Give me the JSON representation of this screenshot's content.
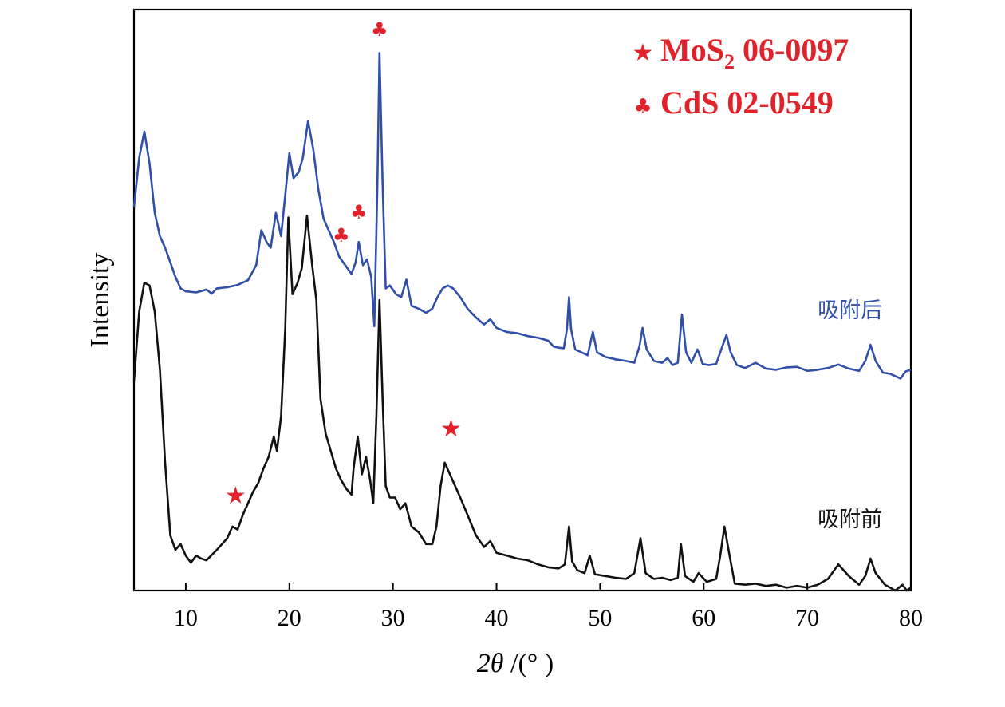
{
  "chart_data": {
    "type": "line",
    "xlabel_prefix": "2θ",
    "xlabel_suffix": " /(°  )",
    "ylabel": "Intensity",
    "xlim": [
      5,
      80
    ],
    "x_ticks": [
      10,
      20,
      30,
      40,
      50,
      60,
      70,
      80
    ],
    "y_ticks_shown": false,
    "legend_position": "top-right",
    "legend": [
      {
        "marker": "★",
        "text": "MoS",
        "sub": "2",
        "suffix": " 06-0097",
        "color": "#e0232b"
      },
      {
        "marker": "♣",
        "text": "CdS 02-0549",
        "sub": "",
        "suffix": "",
        "color": "#e0232b"
      }
    ],
    "series": [
      {
        "name": "吸附后",
        "color": "#2f4fa8",
        "points": [
          [
            5.0,
            0.66
          ],
          [
            5.5,
            0.745
          ],
          [
            6.0,
            0.79
          ],
          [
            6.5,
            0.735
          ],
          [
            7.0,
            0.65
          ],
          [
            7.5,
            0.61
          ],
          [
            8.0,
            0.59
          ],
          [
            8.5,
            0.565
          ],
          [
            9.0,
            0.54
          ],
          [
            9.5,
            0.52
          ],
          [
            10.0,
            0.515
          ],
          [
            11.0,
            0.513
          ],
          [
            12.0,
            0.518
          ],
          [
            12.5,
            0.511
          ],
          [
            13.0,
            0.52
          ],
          [
            14.0,
            0.522
          ],
          [
            15.0,
            0.526
          ],
          [
            16.0,
            0.534
          ],
          [
            16.8,
            0.56
          ],
          [
            17.3,
            0.62
          ],
          [
            17.8,
            0.6
          ],
          [
            18.2,
            0.59
          ],
          [
            18.7,
            0.65
          ],
          [
            19.2,
            0.61
          ],
          [
            19.6,
            0.68
          ],
          [
            20.0,
            0.753
          ],
          [
            20.4,
            0.71
          ],
          [
            20.9,
            0.72
          ],
          [
            21.3,
            0.745
          ],
          [
            21.8,
            0.808
          ],
          [
            22.3,
            0.76
          ],
          [
            22.8,
            0.69
          ],
          [
            23.3,
            0.64
          ],
          [
            23.8,
            0.62
          ],
          [
            24.3,
            0.6
          ],
          [
            24.8,
            0.575
          ],
          [
            25.2,
            0.565
          ],
          [
            25.6,
            0.555
          ],
          [
            26.0,
            0.545
          ],
          [
            26.4,
            0.565
          ],
          [
            26.7,
            0.6
          ],
          [
            27.1,
            0.56
          ],
          [
            27.5,
            0.57
          ],
          [
            27.9,
            0.54
          ],
          [
            28.2,
            0.455
          ],
          [
            28.5,
            0.7
          ],
          [
            28.7,
            0.925
          ],
          [
            29.0,
            0.7
          ],
          [
            29.3,
            0.52
          ],
          [
            29.7,
            0.525
          ],
          [
            30.3,
            0.51
          ],
          [
            30.8,
            0.505
          ],
          [
            31.3,
            0.535
          ],
          [
            31.8,
            0.49
          ],
          [
            32.5,
            0.485
          ],
          [
            33.2,
            0.478
          ],
          [
            33.8,
            0.485
          ],
          [
            34.3,
            0.505
          ],
          [
            34.8,
            0.52
          ],
          [
            35.3,
            0.525
          ],
          [
            35.8,
            0.52
          ],
          [
            36.5,
            0.505
          ],
          [
            37.2,
            0.485
          ],
          [
            38.0,
            0.47
          ],
          [
            38.8,
            0.458
          ],
          [
            39.4,
            0.467
          ],
          [
            40.0,
            0.452
          ],
          [
            41.0,
            0.445
          ],
          [
            42.0,
            0.443
          ],
          [
            43.0,
            0.438
          ],
          [
            44.0,
            0.435
          ],
          [
            45.0,
            0.43
          ],
          [
            45.5,
            0.42
          ],
          [
            46.0,
            0.418
          ],
          [
            46.5,
            0.417
          ],
          [
            46.8,
            0.45
          ],
          [
            47.0,
            0.505
          ],
          [
            47.2,
            0.45
          ],
          [
            47.6,
            0.415
          ],
          [
            48.2,
            0.41
          ],
          [
            48.8,
            0.405
          ],
          [
            49.3,
            0.445
          ],
          [
            49.7,
            0.41
          ],
          [
            50.5,
            0.402
          ],
          [
            51.5,
            0.398
          ],
          [
            52.5,
            0.395
          ],
          [
            53.3,
            0.392
          ],
          [
            53.8,
            0.42
          ],
          [
            54.1,
            0.452
          ],
          [
            54.5,
            0.415
          ],
          [
            55.2,
            0.395
          ],
          [
            56.0,
            0.392
          ],
          [
            56.5,
            0.4
          ],
          [
            57.0,
            0.388
          ],
          [
            57.5,
            0.392
          ],
          [
            57.9,
            0.475
          ],
          [
            58.3,
            0.41
          ],
          [
            58.8,
            0.392
          ],
          [
            59.4,
            0.415
          ],
          [
            59.9,
            0.39
          ],
          [
            60.5,
            0.388
          ],
          [
            61.2,
            0.39
          ],
          [
            61.8,
            0.42
          ],
          [
            62.2,
            0.44
          ],
          [
            62.6,
            0.41
          ],
          [
            63.2,
            0.388
          ],
          [
            64.0,
            0.383
          ],
          [
            65.0,
            0.392
          ],
          [
            66.0,
            0.382
          ],
          [
            67.0,
            0.38
          ],
          [
            68.0,
            0.384
          ],
          [
            69.0,
            0.385
          ],
          [
            70.0,
            0.378
          ],
          [
            71.0,
            0.38
          ],
          [
            72.0,
            0.383
          ],
          [
            73.0,
            0.389
          ],
          [
            74.0,
            0.382
          ],
          [
            75.0,
            0.378
          ],
          [
            75.6,
            0.395
          ],
          [
            76.1,
            0.423
          ],
          [
            76.6,
            0.395
          ],
          [
            77.3,
            0.375
          ],
          [
            78.0,
            0.373
          ],
          [
            79.0,
            0.365
          ],
          [
            79.5,
            0.377
          ],
          [
            80.0,
            0.38
          ]
        ],
        "markers": [
          {
            "x": 25.0,
            "y": 0.6,
            "symbol": "♣"
          },
          {
            "x": 26.7,
            "y": 0.64,
            "symbol": "♣"
          },
          {
            "x": 28.7,
            "y": 0.955,
            "symbol": "♣"
          }
        ]
      },
      {
        "name": "吸附前",
        "color": "#111111",
        "points": [
          [
            5.0,
            0.36
          ],
          [
            5.5,
            0.48
          ],
          [
            6.0,
            0.53
          ],
          [
            6.5,
            0.525
          ],
          [
            7.0,
            0.48
          ],
          [
            7.5,
            0.38
          ],
          [
            8.0,
            0.22
          ],
          [
            8.5,
            0.095
          ],
          [
            9.0,
            0.07
          ],
          [
            9.5,
            0.08
          ],
          [
            10.0,
            0.06
          ],
          [
            10.5,
            0.048
          ],
          [
            11.0,
            0.06
          ],
          [
            11.5,
            0.055
          ],
          [
            12.0,
            0.052
          ],
          [
            13.0,
            0.07
          ],
          [
            14.0,
            0.09
          ],
          [
            14.5,
            0.11
          ],
          [
            15.0,
            0.105
          ],
          [
            15.5,
            0.13
          ],
          [
            16.0,
            0.15
          ],
          [
            16.5,
            0.17
          ],
          [
            17.0,
            0.185
          ],
          [
            17.5,
            0.21
          ],
          [
            18.0,
            0.23
          ],
          [
            18.5,
            0.265
          ],
          [
            18.8,
            0.24
          ],
          [
            19.2,
            0.3
          ],
          [
            19.6,
            0.45
          ],
          [
            19.9,
            0.642
          ],
          [
            20.3,
            0.51
          ],
          [
            20.8,
            0.53
          ],
          [
            21.2,
            0.555
          ],
          [
            21.7,
            0.645
          ],
          [
            22.2,
            0.56
          ],
          [
            22.6,
            0.5
          ],
          [
            23.0,
            0.33
          ],
          [
            23.5,
            0.27
          ],
          [
            24.0,
            0.24
          ],
          [
            24.5,
            0.21
          ],
          [
            25.0,
            0.19
          ],
          [
            25.5,
            0.175
          ],
          [
            26.0,
            0.165
          ],
          [
            26.2,
            0.21
          ],
          [
            26.6,
            0.265
          ],
          [
            27.0,
            0.2
          ],
          [
            27.4,
            0.23
          ],
          [
            27.8,
            0.19
          ],
          [
            28.1,
            0.15
          ],
          [
            28.4,
            0.3
          ],
          [
            28.7,
            0.5
          ],
          [
            29.0,
            0.33
          ],
          [
            29.3,
            0.18
          ],
          [
            29.7,
            0.16
          ],
          [
            30.2,
            0.16
          ],
          [
            30.7,
            0.14
          ],
          [
            31.2,
            0.15
          ],
          [
            31.8,
            0.11
          ],
          [
            32.5,
            0.1
          ],
          [
            33.2,
            0.08
          ],
          [
            33.8,
            0.08
          ],
          [
            34.2,
            0.11
          ],
          [
            34.6,
            0.18
          ],
          [
            35.0,
            0.22
          ],
          [
            35.5,
            0.2
          ],
          [
            36.0,
            0.18
          ],
          [
            36.5,
            0.16
          ],
          [
            37.2,
            0.13
          ],
          [
            38.0,
            0.095
          ],
          [
            38.8,
            0.075
          ],
          [
            39.4,
            0.085
          ],
          [
            40.0,
            0.065
          ],
          [
            41.0,
            0.06
          ],
          [
            42.0,
            0.055
          ],
          [
            43.0,
            0.052
          ],
          [
            44.0,
            0.045
          ],
          [
            45.0,
            0.04
          ],
          [
            46.0,
            0.038
          ],
          [
            46.6,
            0.045
          ],
          [
            47.0,
            0.11
          ],
          [
            47.3,
            0.05
          ],
          [
            47.8,
            0.035
          ],
          [
            48.5,
            0.03
          ],
          [
            49.0,
            0.06
          ],
          [
            49.5,
            0.028
          ],
          [
            50.5,
            0.025
          ],
          [
            51.5,
            0.022
          ],
          [
            52.5,
            0.02
          ],
          [
            53.3,
            0.03
          ],
          [
            53.9,
            0.09
          ],
          [
            54.4,
            0.03
          ],
          [
            55.2,
            0.02
          ],
          [
            56.0,
            0.022
          ],
          [
            56.8,
            0.018
          ],
          [
            57.5,
            0.022
          ],
          [
            57.8,
            0.08
          ],
          [
            58.2,
            0.025
          ],
          [
            59.0,
            0.015
          ],
          [
            59.5,
            0.03
          ],
          [
            60.3,
            0.015
          ],
          [
            61.2,
            0.02
          ],
          [
            61.6,
            0.06
          ],
          [
            62.0,
            0.11
          ],
          [
            62.5,
            0.06
          ],
          [
            63.0,
            0.012
          ],
          [
            64.0,
            0.01
          ],
          [
            65.0,
            0.012
          ],
          [
            66.0,
            0.008
          ],
          [
            67.0,
            0.01
          ],
          [
            68.0,
            0.005
          ],
          [
            69.0,
            0.008
          ],
          [
            70.0,
            0.005
          ],
          [
            71.0,
            0.01
          ],
          [
            72.0,
            0.02
          ],
          [
            73.0,
            0.045
          ],
          [
            74.0,
            0.025
          ],
          [
            75.0,
            0.01
          ],
          [
            75.6,
            0.025
          ],
          [
            76.1,
            0.055
          ],
          [
            76.6,
            0.03
          ],
          [
            77.5,
            0.01
          ],
          [
            78.5,
            0.0
          ],
          [
            79.2,
            0.01
          ],
          [
            79.6,
            0.0
          ],
          [
            80.0,
            0.005
          ]
        ],
        "markers": [
          {
            "x": 14.8,
            "y": 0.15,
            "symbol": "★"
          },
          {
            "x": 35.6,
            "y": 0.265,
            "symbol": "★"
          }
        ]
      }
    ],
    "series_labels": [
      {
        "text": "吸附后",
        "x": 71.0,
        "y": 0.47,
        "color": "#2f4fa8"
      },
      {
        "text": "吸附前",
        "x": 71.0,
        "y": 0.11,
        "color": "#111111"
      }
    ]
  }
}
